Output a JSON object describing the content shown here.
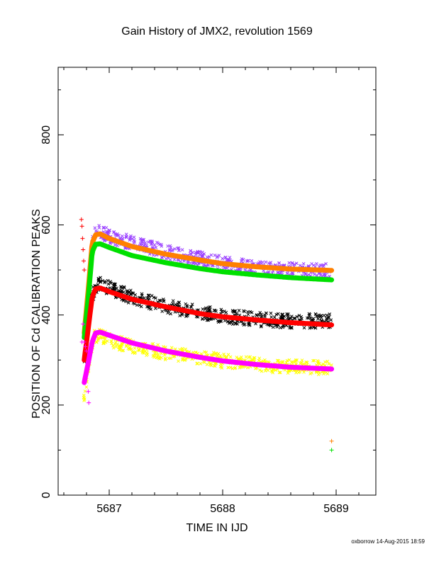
{
  "chart_data": {
    "type": "scatter",
    "title": "Gain History of JMX2, revolution 1569",
    "xlabel": "TIME IN IJD",
    "ylabel": "POSITION OF Cd CALIBRATION PEAKS",
    "xlim": [
      5686.55,
      5689.35
    ],
    "ylim": [
      0,
      950
    ],
    "x_ticks": [
      5687,
      5688,
      5689
    ],
    "x_tick_labels": [
      "5687",
      "5688",
      "5689"
    ],
    "y_ticks": [
      0,
      200,
      400,
      600,
      800
    ],
    "y_tick_labels": [
      "0",
      "200",
      "400",
      "600",
      "800"
    ],
    "grid": false,
    "legend": "none",
    "series": [
      {
        "color": "#9a40ff",
        "marker": "x",
        "x": [
          5686.78,
          5686.82,
          5686.85,
          5686.88,
          5686.92,
          5687.0,
          5687.2,
          5687.5,
          5687.8,
          5688.0,
          5688.3,
          5688.6,
          5688.96
        ],
        "y": [
          360,
          470,
          560,
          590,
          585,
          575,
          560,
          540,
          525,
          515,
          505,
          500,
          498
        ]
      },
      {
        "color": "#ff8000",
        "marker": "line",
        "x": [
          5686.78,
          5686.82,
          5686.85,
          5686.88,
          5686.92,
          5687.0,
          5687.2,
          5687.5,
          5687.8,
          5688.0,
          5688.3,
          5688.6,
          5688.96
        ],
        "y": [
          360,
          470,
          560,
          578,
          580,
          570,
          552,
          535,
          522,
          514,
          507,
          502,
          499
        ]
      },
      {
        "color": "#00e000",
        "marker": "line",
        "x": [
          5686.78,
          5686.82,
          5686.85,
          5686.88,
          5686.92,
          5687.0,
          5687.2,
          5687.5,
          5687.8,
          5688.0,
          5688.3,
          5688.6,
          5688.96
        ],
        "y": [
          350,
          450,
          540,
          557,
          558,
          550,
          532,
          516,
          503,
          496,
          489,
          483,
          478
        ]
      },
      {
        "color": "#000000",
        "marker": "x",
        "x": [
          5686.78,
          5686.82,
          5686.85,
          5686.88,
          5686.92,
          5687.0,
          5687.2,
          5687.5,
          5687.8,
          5688.0,
          5688.3,
          5688.6,
          5688.96
        ],
        "y": [
          300,
          380,
          440,
          465,
          470,
          460,
          440,
          420,
          405,
          398,
          390,
          386,
          388
        ]
      },
      {
        "color": "#ff0000",
        "marker": "line",
        "x": [
          5686.78,
          5686.82,
          5686.85,
          5686.88,
          5686.92,
          5687.0,
          5687.2,
          5687.5,
          5687.8,
          5688.0,
          5688.3,
          5688.6,
          5688.96
        ],
        "y": [
          300,
          380,
          440,
          458,
          460,
          452,
          435,
          418,
          403,
          396,
          389,
          383,
          378
        ]
      },
      {
        "color": "#ffff00",
        "marker": "x",
        "x": [
          5686.76,
          5686.78,
          5686.82,
          5686.85,
          5686.88,
          5686.92,
          5687.0,
          5687.2,
          5687.5,
          5687.8,
          5688.0,
          5688.3,
          5688.6,
          5688.96
        ],
        "y": [
          160,
          220,
          290,
          340,
          355,
          355,
          345,
          330,
          315,
          305,
          298,
          290,
          285,
          282
        ]
      },
      {
        "color": "#ff00ff",
        "marker": "line",
        "x": [
          5686.78,
          5686.82,
          5686.85,
          5686.88,
          5686.92,
          5687.0,
          5687.2,
          5687.5,
          5687.8,
          5688.0,
          5688.3,
          5688.6,
          5688.96
        ],
        "y": [
          250,
          300,
          340,
          360,
          362,
          355,
          338,
          320,
          306,
          298,
          290,
          284,
          280
        ]
      },
      {
        "color": "#ff00ff",
        "marker": "+",
        "x": [
          5686.76,
          5686.77,
          5686.78,
          5686.79,
          5686.8,
          5686.81,
          5686.815,
          5686.82
        ],
        "y": [
          340,
          380,
          340,
          330,
          320,
          280,
          230,
          205
        ]
      },
      {
        "color": "#ff0000",
        "marker": "+",
        "x": [
          5686.755,
          5686.76,
          5686.765,
          5686.77,
          5686.775,
          5686.78
        ],
        "y": [
          612,
          597,
          570,
          545,
          520,
          500
        ]
      },
      {
        "color": "#ff8000",
        "marker": "+",
        "x": [
          5688.96
        ],
        "y": [
          120
        ]
      },
      {
        "color": "#00e000",
        "marker": "+",
        "x": [
          5688.96
        ],
        "y": [
          100
        ]
      }
    ]
  },
  "footer": {
    "stamp": "oxborrow 14-Aug-2015 18:59"
  }
}
